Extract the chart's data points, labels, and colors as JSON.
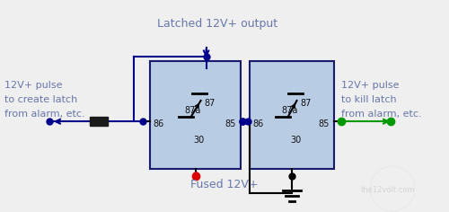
{
  "bg_color": "#efefef",
  "relay_fill": "#b8cce4",
  "relay_edge": "#1a1a6e",
  "wire_color": "#00008b",
  "red_wire": "#dd0000",
  "green_wire": "#009900",
  "black_wire": "#000000",
  "text_color": "#6677aa",
  "title": "Latched 12V+ output",
  "label_left_line1": "12V+ pulse",
  "label_left_line2": "to create latch",
  "label_left_line3": "from alarm, etc.",
  "label_right_line1": "12V+ pulse",
  "label_right_line2": "to kill latch",
  "label_right_line3": "from alarm, etc.",
  "label_fused": "Fused 12V+",
  "font_size_main": 9,
  "font_size_pin": 7,
  "font_size_label": 8,
  "watermark": "the12volt.com"
}
